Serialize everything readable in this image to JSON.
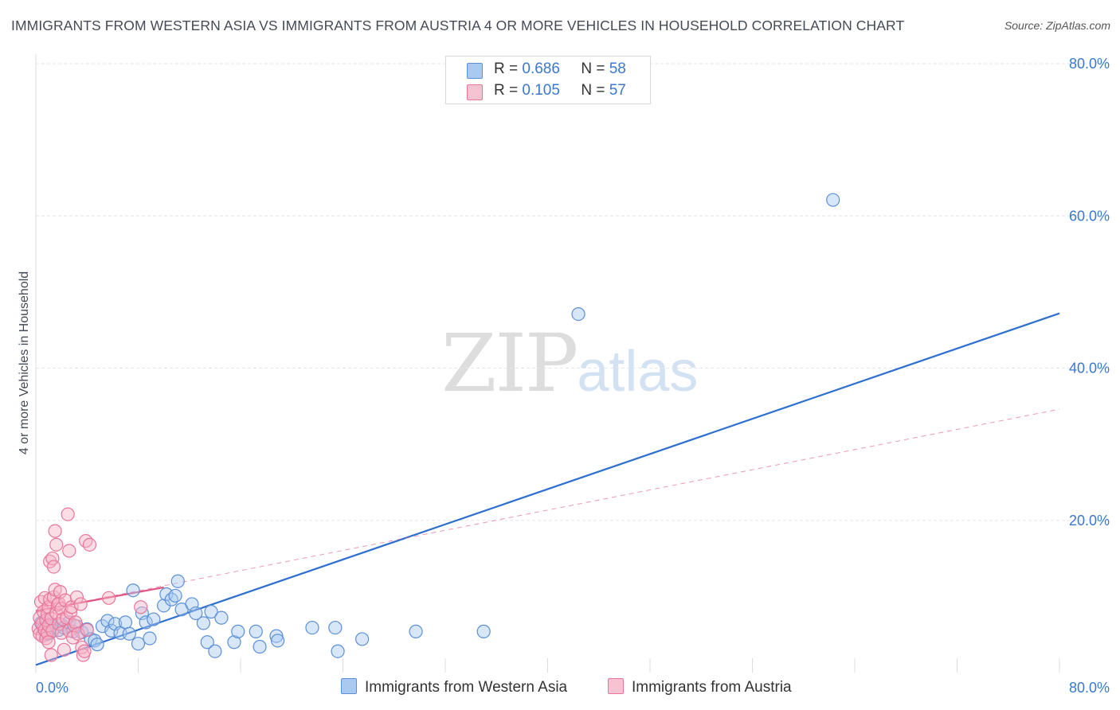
{
  "title": "IMMIGRANTS FROM WESTERN ASIA VS IMMIGRANTS FROM AUSTRIA 4 OR MORE VEHICLES IN HOUSEHOLD CORRELATION CHART",
  "source": "Source: ZipAtlas.com",
  "watermark": {
    "zip": "ZIP",
    "atlas": "atlas"
  },
  "legend": [
    {
      "r_label": "R =",
      "r_value": "0.686",
      "n_label": "N =",
      "n_value": "58"
    },
    {
      "r_label": "R =",
      "r_value": "0.105",
      "n_label": "N =",
      "n_value": "57"
    }
  ],
  "colors": {
    "blue_fill": "#a9c9f0",
    "blue_stroke": "#5b8fd6",
    "blue_line": "#2c6fd0",
    "pink_fill": "#f6b4c8",
    "pink_stroke": "#e8769a",
    "pink_line": "#e05582",
    "grid": "#e3e6ea",
    "tick_text": "#3a78cf"
  },
  "chart_data": {
    "type": "scatter",
    "title": "IMMIGRANTS FROM WESTERN ASIA VS IMMIGRANTS FROM AUSTRIA 4 OR MORE VEHICLES IN HOUSEHOLD CORRELATION CHART",
    "xlabel": "",
    "ylabel": "4 or more Vehicles in Household",
    "xlim": [
      0,
      80
    ],
    "ylim": [
      0,
      80
    ],
    "x_tick_labels": [
      "0.0%",
      "80.0%"
    ],
    "y_tick_values": [
      20,
      40,
      60,
      80
    ],
    "y_tick_labels": [
      "20.0%",
      "40.0%",
      "60.0%",
      "80.0%"
    ],
    "grid": true,
    "series": [
      {
        "name": "Immigrants from Western Asia",
        "color": "blue",
        "R": 0.686,
        "N": 58,
        "trend": {
          "x": [
            0,
            80
          ],
          "y": [
            1.0,
            47.2
          ],
          "style": "solid"
        },
        "points": [
          [
            0.4,
            6.5
          ],
          [
            0.6,
            5.8
          ],
          [
            0.9,
            6.8
          ],
          [
            1.1,
            5.2
          ],
          [
            1.2,
            6.4
          ],
          [
            1.5,
            6.0
          ],
          [
            1.8,
            5.6
          ],
          [
            2.0,
            6.3
          ],
          [
            2.2,
            5.9
          ],
          [
            2.6,
            6.6
          ],
          [
            2.9,
            5.4
          ],
          [
            3.2,
            6.1
          ],
          [
            3.6,
            5.3
          ],
          [
            4.0,
            5.7
          ],
          [
            4.3,
            4.4
          ],
          [
            4.6,
            4.2
          ],
          [
            4.8,
            3.7
          ],
          [
            5.2,
            6.1
          ],
          [
            5.6,
            6.8
          ],
          [
            5.9,
            5.5
          ],
          [
            6.2,
            6.4
          ],
          [
            6.6,
            5.2
          ],
          [
            7.0,
            6.6
          ],
          [
            7.3,
            5.1
          ],
          [
            7.6,
            10.8
          ],
          [
            8.0,
            3.8
          ],
          [
            8.3,
            7.8
          ],
          [
            8.6,
            6.6
          ],
          [
            8.9,
            4.5
          ],
          [
            9.2,
            7.0
          ],
          [
            10.0,
            8.8
          ],
          [
            10.2,
            10.3
          ],
          [
            10.6,
            9.6
          ],
          [
            10.9,
            10.1
          ],
          [
            11.1,
            12.0
          ],
          [
            11.4,
            8.3
          ],
          [
            12.2,
            9.0
          ],
          [
            12.5,
            7.8
          ],
          [
            13.1,
            6.5
          ],
          [
            13.4,
            4.0
          ],
          [
            13.7,
            8.0
          ],
          [
            14.0,
            2.8
          ],
          [
            14.5,
            7.2
          ],
          [
            15.5,
            4.0
          ],
          [
            15.8,
            5.4
          ],
          [
            17.2,
            5.4
          ],
          [
            17.5,
            3.4
          ],
          [
            18.8,
            4.8
          ],
          [
            18.9,
            4.2
          ],
          [
            21.6,
            5.9
          ],
          [
            23.4,
            5.9
          ],
          [
            23.6,
            2.8
          ],
          [
            25.5,
            4.4
          ],
          [
            29.7,
            5.4
          ],
          [
            35.0,
            5.4
          ],
          [
            42.4,
            47.1
          ],
          [
            62.3,
            62.1
          ],
          [
            0.8,
            5.0
          ]
        ]
      },
      {
        "name": "Immigrants from Austria",
        "color": "pink",
        "R": 0.105,
        "N": 57,
        "trend": {
          "x": [
            0,
            10
          ],
          "y": [
            8.1,
            11.2
          ],
          "style": "solid",
          "extended": {
            "x": [
              0,
              80
            ],
            "y": [
              8.1,
              34.6
            ],
            "style": "dashed"
          }
        },
        "points": [
          [
            0.2,
            5.8
          ],
          [
            0.3,
            7.2
          ],
          [
            0.3,
            5.1
          ],
          [
            0.4,
            9.3
          ],
          [
            0.5,
            6.4
          ],
          [
            0.5,
            4.8
          ],
          [
            0.6,
            8.0
          ],
          [
            0.7,
            5.6
          ],
          [
            0.7,
            9.8
          ],
          [
            0.8,
            6.9
          ],
          [
            0.8,
            4.5
          ],
          [
            0.9,
            7.6
          ],
          [
            0.9,
            5.2
          ],
          [
            1.0,
            8.6
          ],
          [
            1.0,
            6.2
          ],
          [
            1.1,
            9.6
          ],
          [
            1.1,
            14.6
          ],
          [
            1.2,
            7.1
          ],
          [
            1.2,
            2.3
          ],
          [
            1.3,
            15.0
          ],
          [
            1.3,
            5.5
          ],
          [
            1.4,
            13.9
          ],
          [
            1.4,
            9.9
          ],
          [
            1.5,
            18.6
          ],
          [
            1.5,
            10.9
          ],
          [
            1.6,
            16.8
          ],
          [
            1.6,
            7.8
          ],
          [
            1.7,
            8.9
          ],
          [
            1.8,
            6.4
          ],
          [
            1.8,
            9.1
          ],
          [
            1.9,
            10.6
          ],
          [
            2.0,
            5.2
          ],
          [
            2.0,
            8.4
          ],
          [
            2.1,
            7.0
          ],
          [
            2.2,
            3.0
          ],
          [
            2.3,
            9.5
          ],
          [
            2.4,
            7.2
          ],
          [
            2.5,
            20.8
          ],
          [
            2.6,
            16.0
          ],
          [
            2.6,
            5.5
          ],
          [
            2.7,
            7.9
          ],
          [
            2.8,
            8.6
          ],
          [
            2.9,
            4.6
          ],
          [
            3.0,
            6.2
          ],
          [
            3.1,
            6.6
          ],
          [
            3.2,
            9.9
          ],
          [
            3.3,
            5.1
          ],
          [
            3.5,
            9.0
          ],
          [
            3.6,
            3.3
          ],
          [
            3.7,
            2.3
          ],
          [
            3.8,
            2.8
          ],
          [
            3.9,
            17.3
          ],
          [
            4.0,
            5.6
          ],
          [
            4.2,
            16.8
          ],
          [
            5.7,
            9.8
          ],
          [
            8.2,
            8.6
          ],
          [
            1.0,
            4.0
          ]
        ]
      }
    ]
  }
}
